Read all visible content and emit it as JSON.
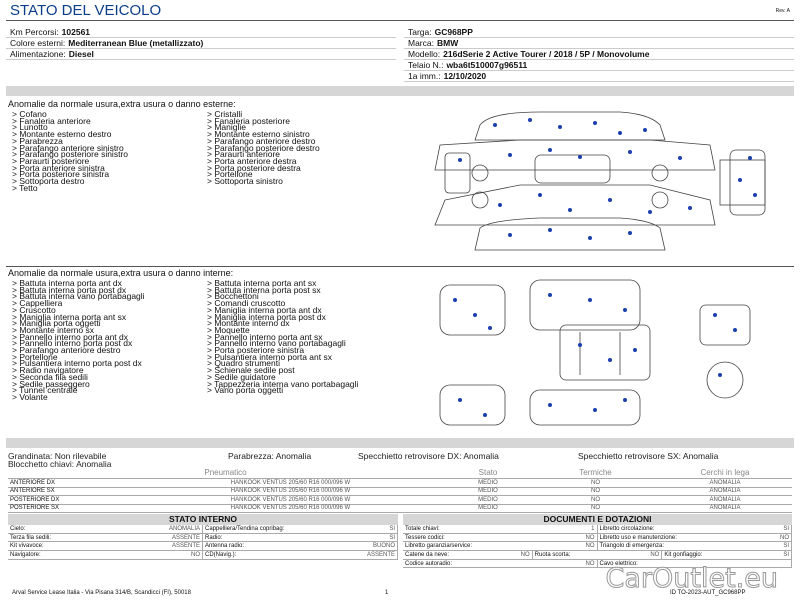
{
  "header": {
    "title": "STATO DEL VEICOLO",
    "revision": "Rev. A"
  },
  "vehicle_info": {
    "left": [
      {
        "label": "Km Percorsi:",
        "value": "102561"
      },
      {
        "label": "Colore esterni:",
        "value": "Mediterranean Blue (metallizzato)"
      },
      {
        "label": "Alimentazione:",
        "value": "Diesel"
      }
    ],
    "right": [
      {
        "label": "Targa:",
        "value": "GC968PP"
      },
      {
        "label": "Marca:",
        "value": "BMW"
      },
      {
        "label": "Modello:",
        "value": "216dSerie 2 Active Tourer / 2018 / 5P / Monovolume"
      },
      {
        "label": "Telaio N.:",
        "value": "wba6t510007g96511"
      },
      {
        "label": "1a imm.:",
        "value": "12/10/2020"
      }
    ]
  },
  "exterior": {
    "heading": "Anomalie da normale usura,extra usura o danno esterne:",
    "items_left": [
      "> Cofano",
      "> Fanaleria anteriore",
      "> Lunotto",
      "> Montante esterno destro",
      "> Parabrezza",
      "> Parafango anteriore sinistro",
      "> Parafango posteriore sinistro",
      "> Paraurti posteriore",
      "> Porta anteriore sinistra",
      "> Porta posteriore sinistra",
      "> Sottoporta destro",
      "> Tetto"
    ],
    "items_right": [
      "> Cristalli",
      "> Fanaleria posteriore",
      "> Maniglie",
      "> Montante esterno sinistro",
      "> Parafango anteriore destro",
      "> Parafango posteriore destro",
      "> Paraurti anteriore",
      "> Porta anteriore destra",
      "> Porta posteriore destra",
      "> Portellone",
      "> Sottoporta sinistro"
    ]
  },
  "interior": {
    "heading": "Anomalie da normale usura,extra usura o danno interne:",
    "items_left": [
      "> Battuta interna porta ant dx",
      "> Battuta interna porta post dx",
      "> Battuta interna vano portabagagli",
      "> Cappelliera",
      "> Cruscotto",
      "> Maniglia interna porta ant sx",
      "> Maniglia porta oggetti",
      "> Montante interno sx",
      "> Pannello interno porta ant dx",
      "> Pannello interno porta post dx",
      "> Parafango anteriore destro",
      "> Portellone",
      "> Pulsantiera interno porta post dx",
      "> Radio navigatore",
      "> Seconda fila sedili",
      "> Sedile passeggero",
      "> Tunnel centrale",
      "> Volante"
    ],
    "items_right": [
      "> Battuta interna porta ant sx",
      "> Battuta interna porta post sx",
      "> Bocchettoni",
      "> Comandi cruscotto",
      "> Maniglia interna porta ant dx",
      "> Maniglia interna porta post dx",
      "> Montante interno dx",
      "> Moquette",
      "> Pannello interno porta ant sx",
      "> Pannello interno vano portabagagli",
      "> Porta posteriore sinistra",
      "> Pulsantiera interno porta ant sx",
      "> Quadro strumenti",
      "> Schienale sedile post",
      "> Sedile guidatore",
      "> Tappezzeria interna vano portabagagli",
      "> Vano porta oggetti"
    ]
  },
  "checks": [
    {
      "label": "Grandinata:",
      "value": "Non rilevabile"
    },
    {
      "label": "Parabrezza:",
      "value": "Anomalia"
    },
    {
      "label": "Specchietto retrovisore DX:",
      "value": "Anomalia"
    },
    {
      "label": "Specchietto retrovisore SX:",
      "value": "Anomalia"
    },
    {
      "label": "Blocchetto chiavi:",
      "value": "Anomalia"
    }
  ],
  "tyres": {
    "headers": [
      "Pneumatico",
      "Stato",
      "Termiche",
      "Cerchi in lega"
    ],
    "rows": [
      [
        "ANTERIORE DX",
        "HANKOOK VENTUS 205/60 R16 000/096 W",
        "MEDIO",
        "NO",
        "ANOMALIA"
      ],
      [
        "ANTERIORE SX",
        "HANKOOK VENTUS 205/60 R16 000/096 W",
        "MEDIO",
        "NO",
        "ANOMALIA"
      ],
      [
        "POSTERIORE DX",
        "HANKOOK VENTUS 205/60 R16 000/096 W",
        "MEDIO",
        "NO",
        "ANOMALIA"
      ],
      [
        "POSTERIORE SX",
        "HANKOOK VENTUS 205/60 R16 000/096 W",
        "MEDIO",
        "NO",
        "ANOMALIA"
      ]
    ]
  },
  "stato_interno": {
    "title": "STATO INTERNO",
    "rows": [
      [
        {
          "label": "Cielo:",
          "value": "ANOMALIA"
        },
        {
          "label": "Cappelliera/Tendina copribag:",
          "value": "SI"
        }
      ],
      [
        {
          "label": "Terza fila sedili:",
          "value": "ASSENTE"
        },
        {
          "label": "Radio:",
          "value": "SI"
        }
      ],
      [
        {
          "label": "Kit vivavoce:",
          "value": "ASSENTE"
        },
        {
          "label": "Antenna radio:",
          "value": "BUONO"
        }
      ],
      [
        {
          "label": "Navigatore:",
          "value": "NO"
        },
        {
          "label": "CD(Navig.):",
          "value": "ASSENTE"
        }
      ]
    ]
  },
  "documenti": {
    "title": "DOCUMENTI E DOTAZIONI",
    "rows": [
      [
        {
          "label": "Totale chiavi:",
          "value": "1"
        },
        {
          "label": "Libretto circolazione:",
          "value": "SI"
        }
      ],
      [
        {
          "label": "Tessere codici:",
          "value": "NO"
        },
        {
          "label": "Libretto uso e manutenzione:",
          "value": "NO"
        }
      ],
      [
        {
          "label": "Libretto garanzia/service:",
          "value": "NO"
        },
        {
          "label": "Triangolo di emergenza:",
          "value": "SI"
        }
      ],
      [
        {
          "label": "Catene da neve:",
          "value": "NO"
        },
        {
          "label": "Ruota scorta:",
          "value": "NO"
        },
        {
          "label": "Kit gonfiaggio:",
          "value": "SI"
        }
      ],
      [
        {
          "label": "Codice autoradio:",
          "value": "NO"
        },
        {
          "label": "Cavo elettrico:"
        }
      ]
    ]
  },
  "footer": {
    "address": "Arval Service Lease Italia - Via Pisana 314/B, Scandicci (FI), 50018",
    "page": "1",
    "id": "ID TO-2023-AUT_GC968PP",
    "watermark": "CarOutlet.eu"
  }
}
